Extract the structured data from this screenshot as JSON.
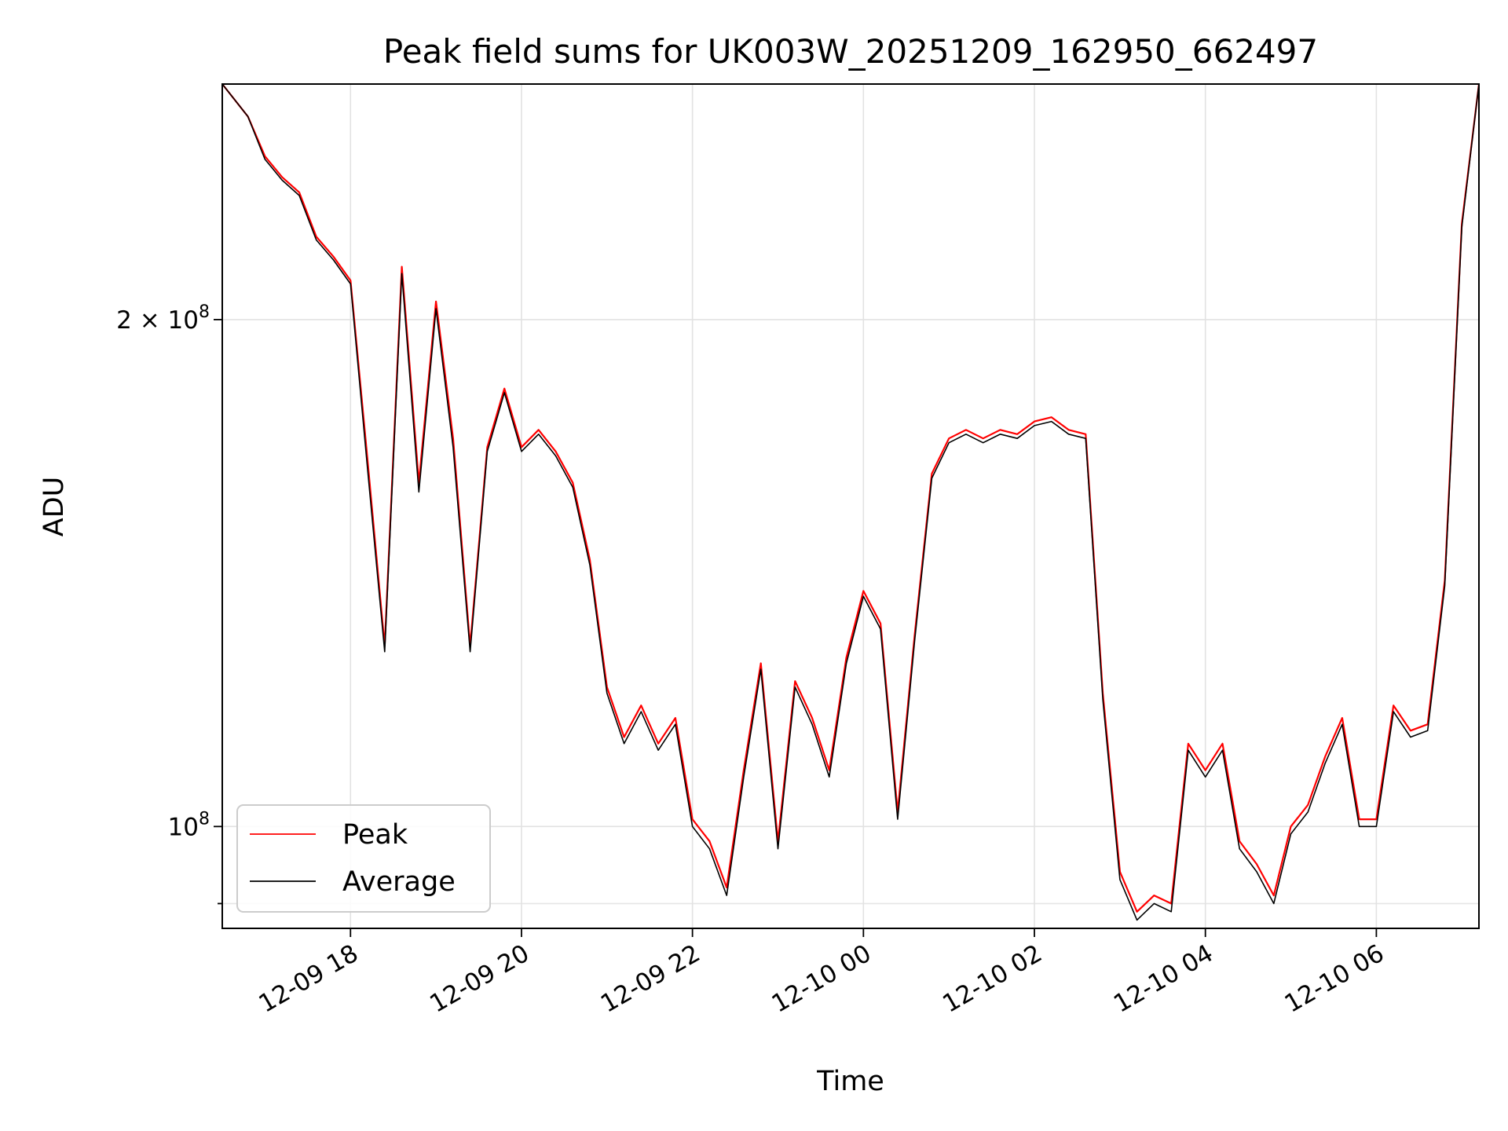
{
  "chart_data": {
    "type": "line",
    "title": "Peak field sums for UK003W_20251209_162950_662497",
    "xlabel": "Time",
    "ylabel": "ADU",
    "y_scale": "log",
    "ylim": [
      87000000,
      276000000
    ],
    "xlim": [
      "2025-12-09 16:30",
      "2025-12-10 07:12"
    ],
    "grid": true,
    "legend_position": "lower-left",
    "x_ticks": [
      {
        "value": "2025-12-09 18:00",
        "label": "12-09 18"
      },
      {
        "value": "2025-12-09 20:00",
        "label": "12-09 20"
      },
      {
        "value": "2025-12-09 22:00",
        "label": "12-09 22"
      },
      {
        "value": "2025-12-10 00:00",
        "label": "12-10 00"
      },
      {
        "value": "2025-12-10 02:00",
        "label": "12-10 02"
      },
      {
        "value": "2025-12-10 04:00",
        "label": "12-10 04"
      },
      {
        "value": "2025-12-10 06:00",
        "label": "12-10 06"
      }
    ],
    "y_ticks": [
      {
        "value": 200000000,
        "base": "2 × 10",
        "exp": "8"
      },
      {
        "value": 100000000,
        "base": "10",
        "exp": "8"
      }
    ],
    "x": [
      "2025-12-09 16:30",
      "2025-12-09 16:48",
      "2025-12-09 17:00",
      "2025-12-09 17:12",
      "2025-12-09 17:24",
      "2025-12-09 17:36",
      "2025-12-09 17:48",
      "2025-12-09 18:00",
      "2025-12-09 18:12",
      "2025-12-09 18:24",
      "2025-12-09 18:36",
      "2025-12-09 18:48",
      "2025-12-09 19:00",
      "2025-12-09 19:12",
      "2025-12-09 19:24",
      "2025-12-09 19:36",
      "2025-12-09 19:48",
      "2025-12-09 20:00",
      "2025-12-09 20:12",
      "2025-12-09 20:24",
      "2025-12-09 20:36",
      "2025-12-09 20:48",
      "2025-12-09 21:00",
      "2025-12-09 21:12",
      "2025-12-09 21:24",
      "2025-12-09 21:36",
      "2025-12-09 21:48",
      "2025-12-09 22:00",
      "2025-12-09 22:12",
      "2025-12-09 22:24",
      "2025-12-09 22:36",
      "2025-12-09 22:48",
      "2025-12-09 23:00",
      "2025-12-09 23:12",
      "2025-12-09 23:24",
      "2025-12-09 23:36",
      "2025-12-09 23:48",
      "2025-12-10 00:00",
      "2025-12-10 00:12",
      "2025-12-10 00:24",
      "2025-12-10 00:36",
      "2025-12-10 00:48",
      "2025-12-10 01:00",
      "2025-12-10 01:12",
      "2025-12-10 01:24",
      "2025-12-10 01:36",
      "2025-12-10 01:48",
      "2025-12-10 02:00",
      "2025-12-10 02:12",
      "2025-12-10 02:24",
      "2025-12-10 02:36",
      "2025-12-10 02:48",
      "2025-12-10 03:00",
      "2025-12-10 03:12",
      "2025-12-10 03:24",
      "2025-12-10 03:36",
      "2025-12-10 03:48",
      "2025-12-10 04:00",
      "2025-12-10 04:12",
      "2025-12-10 04:24",
      "2025-12-10 04:36",
      "2025-12-10 04:48",
      "2025-12-10 05:00",
      "2025-12-10 05:12",
      "2025-12-10 05:24",
      "2025-12-10 05:36",
      "2025-12-10 05:48",
      "2025-12-10 06:00",
      "2025-12-10 06:12",
      "2025-12-10 06:24",
      "2025-12-10 06:36",
      "2025-12-10 06:48",
      "2025-12-10 07:00",
      "2025-12-10 07:12"
    ],
    "series": [
      {
        "name": "Peak",
        "color": "#ff0000",
        "values": [
          276,
          264,
          250,
          243,
          238,
          224,
          218,
          211,
          165,
          128,
          215,
          160,
          205,
          170,
          128,
          168,
          182,
          168,
          172,
          167,
          160,
          144,
          121,
          113,
          118,
          112,
          116,
          101,
          98,
          92,
          108,
          125,
          98,
          122,
          116,
          108,
          126,
          138,
          132,
          102,
          130,
          162,
          170,
          172,
          170,
          172,
          171,
          174,
          175,
          172,
          171,
          120,
          94,
          89,
          91,
          90,
          112,
          108,
          112,
          98,
          95,
          91,
          100,
          103,
          110,
          116,
          101,
          101,
          118,
          114,
          115,
          140,
          228,
          276
        ]
      },
      {
        "name": "Average",
        "color": "#000000",
        "values": [
          276,
          264,
          249,
          242,
          237,
          223,
          217,
          210,
          163,
          127,
          213,
          158,
          203,
          168,
          127,
          167,
          181,
          167,
          171,
          166,
          159,
          143,
          120,
          112,
          117,
          111,
          115,
          100,
          97,
          91,
          107,
          124,
          97,
          121,
          115,
          107,
          125,
          137,
          131,
          101,
          129,
          161,
          169,
          171,
          169,
          171,
          170,
          173,
          174,
          171,
          170,
          119,
          93,
          88,
          90,
          89,
          111,
          107,
          111,
          97,
          94,
          90,
          99,
          102,
          109,
          115,
          100,
          100,
          117,
          113,
          114,
          139,
          227,
          276
        ]
      }
    ],
    "value_multiplier": 1000000
  }
}
